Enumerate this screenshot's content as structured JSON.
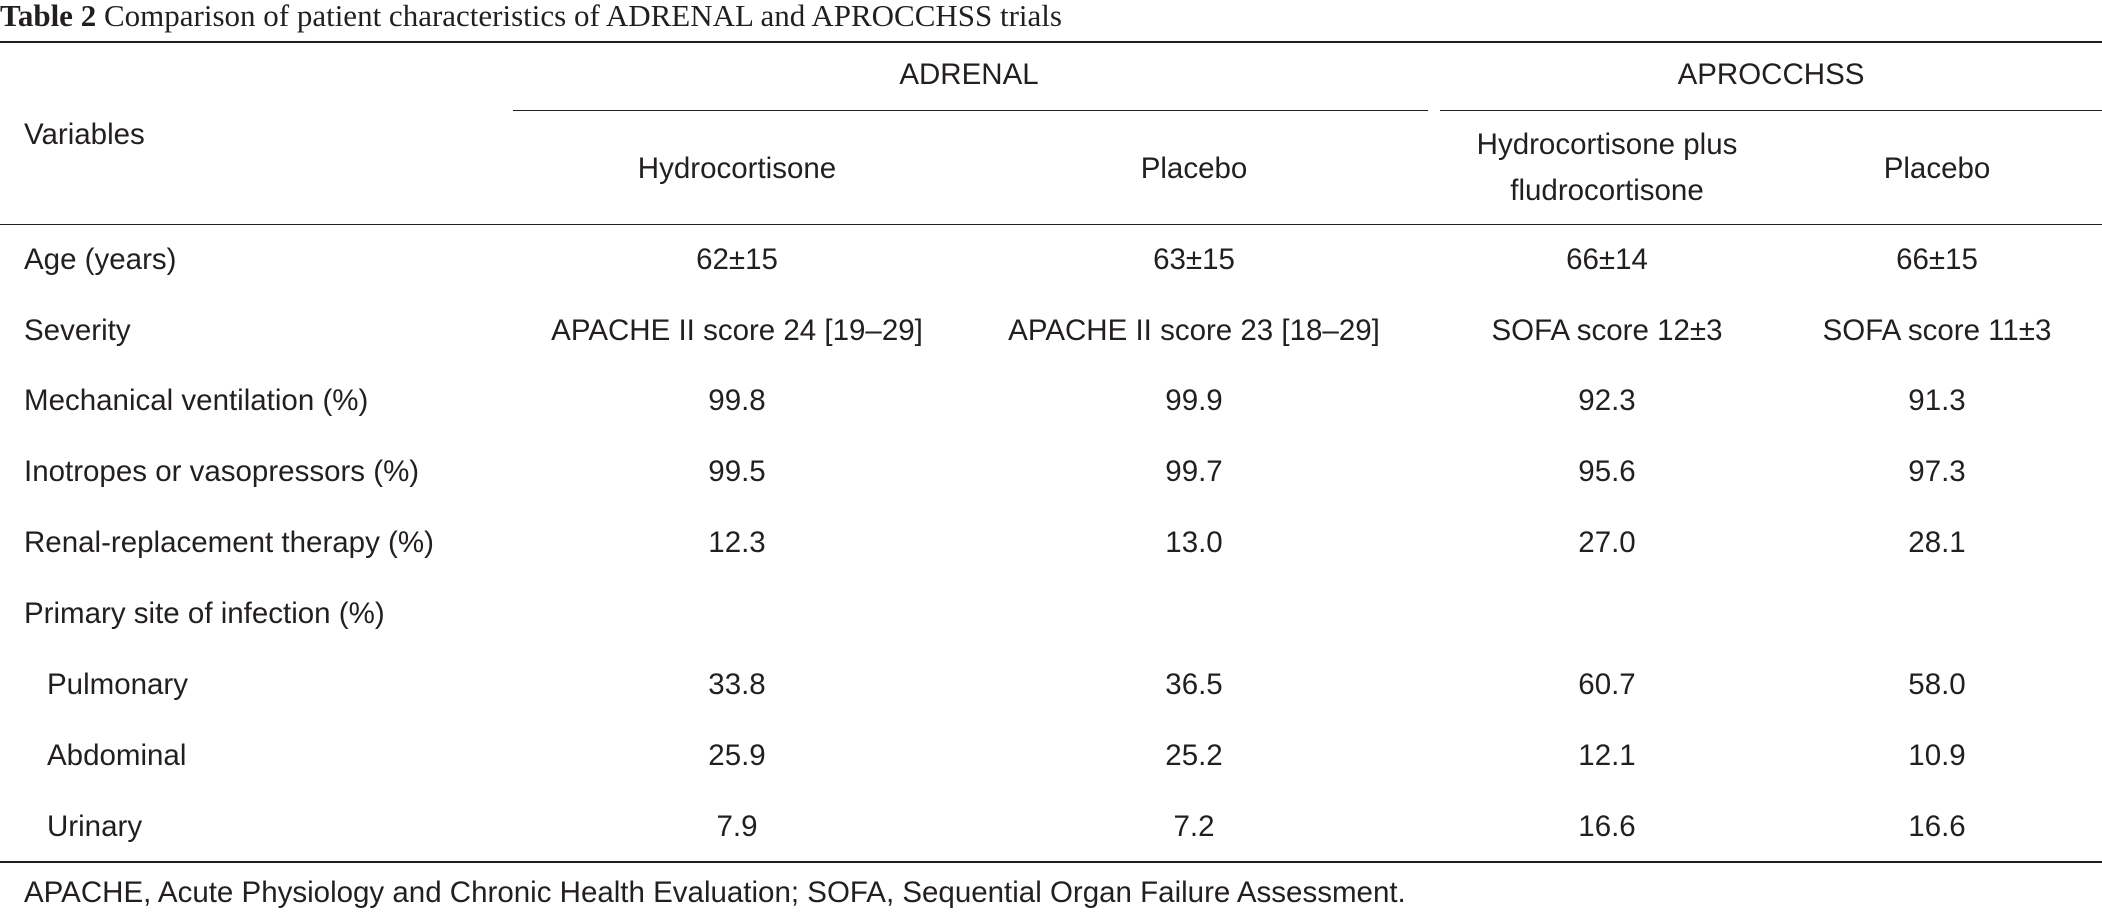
{
  "caption": {
    "label": "Table 2",
    "text": "Comparison of patient characteristics of ADRENAL and APROCCHSS trials"
  },
  "header": {
    "variables": "Variables",
    "groups": [
      {
        "name": "ADRENAL"
      },
      {
        "name": "APROCCHSS"
      }
    ],
    "columns": [
      {
        "line1": "Hydrocortisone",
        "line2": ""
      },
      {
        "line1": "Placebo",
        "line2": ""
      },
      {
        "line1": "Hydrocortisone plus",
        "line2": "fludrocortisone"
      },
      {
        "line1": "Placebo",
        "line2": ""
      }
    ]
  },
  "rows": [
    {
      "label": "Age (years)",
      "cells": [
        "62±15",
        "63±15",
        "66±14",
        "66±15"
      ]
    },
    {
      "label": "Severity",
      "cells": [
        "APACHE II score 24 [19–29]",
        "APACHE II score 23 [18–29]",
        "SOFA score 12±3",
        "SOFA score 11±3"
      ]
    },
    {
      "label": "Mechanical ventilation (%)",
      "cells": [
        "99.8",
        "99.9",
        "92.3",
        "91.3"
      ]
    },
    {
      "label": "Inotropes or vasopressors (%)",
      "cells": [
        "99.5",
        "99.7",
        "95.6",
        "97.3"
      ]
    },
    {
      "label": "Renal-replacement therapy (%)",
      "cells": [
        "12.3",
        "13.0",
        "27.0",
        "28.1"
      ]
    },
    {
      "label": "Primary site of infection (%)",
      "cells": [
        "",
        "",
        "",
        ""
      ]
    },
    {
      "label": "Pulmonary",
      "cells": [
        "33.8",
        "36.5",
        "60.7",
        "58.0"
      ]
    },
    {
      "label": "Abdominal",
      "cells": [
        "25.9",
        "25.2",
        "12.1",
        "10.9"
      ]
    },
    {
      "label": "Urinary",
      "cells": [
        "7.9",
        "7.2",
        "16.6",
        "16.6"
      ]
    }
  ],
  "footnote": "APACHE, Acute Physiology and Chronic Health Evaluation; SOFA, Sequential Organ Failure Assessment."
}
